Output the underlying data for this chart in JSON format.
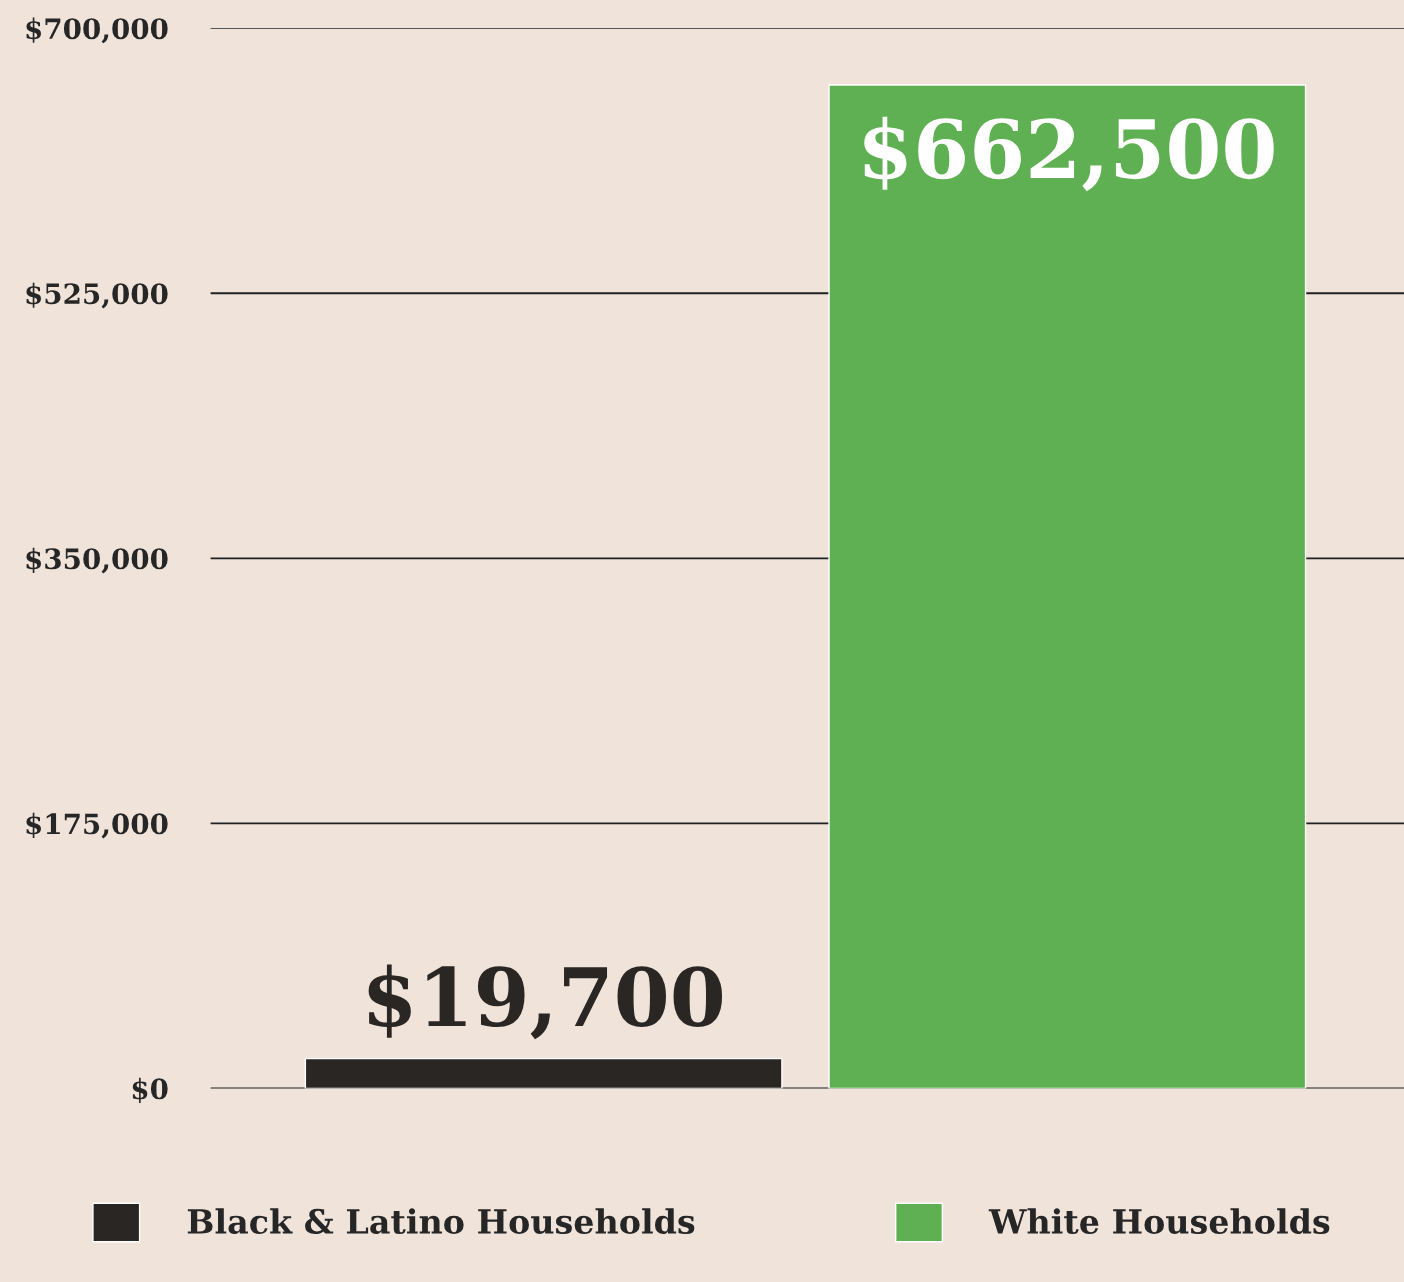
{
  "chart_data": {
    "type": "bar",
    "categories": [
      null,
      null
    ],
    "series": [
      {
        "name": "Black & Latino Households",
        "color": "#2a2624",
        "values": [
          19700,
          null
        ],
        "value_labels": [
          "$19,700",
          null
        ]
      },
      {
        "name": "White Households",
        "color": "#5fb052",
        "values": [
          null,
          662500
        ],
        "value_labels": [
          null,
          "$662,500"
        ]
      }
    ],
    "ylim": [
      0,
      700000
    ],
    "yticks": [
      {
        "value": 0,
        "label": "$0"
      },
      {
        "value": 175000,
        "label": "$175,000"
      },
      {
        "value": 350000,
        "label": "$350,000"
      },
      {
        "value": 525000,
        "label": "$525,000"
      },
      {
        "value": 700000,
        "label": "$700,000"
      }
    ],
    "grid": "y",
    "legend": "bottom"
  }
}
